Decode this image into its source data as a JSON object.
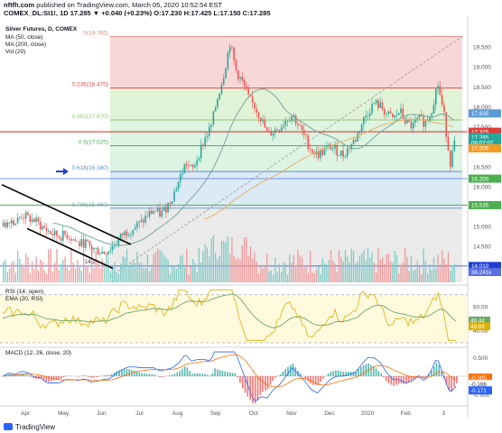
{
  "header": {
    "site": "nftfh.com",
    "published": "published on TradingView.com, March 05, 2020 10:52:54 EST",
    "quote": "COMEX_DL:SI1!, 1D 17.285 ▼ +0.040 (+0.23%) O:17.230 H:17.425 L:17.150 C:17.285"
  },
  "footer": {
    "brand": "TradingView"
  },
  "legend": {
    "title": "Silver Futures, D, COMEX",
    "ma50": "MA (50, close)",
    "ma200": "MA (200, close)",
    "vol": "Vol (20)",
    "rsi": "RSI (14, open)",
    "ema": "EMA (20, RSI)",
    "macd": "MACD (12, 26, close, 20)"
  },
  "colors": {
    "up": "#26a69a",
    "down": "#ef5350",
    "ma50": "#7aa6a0",
    "ma200": "#e8b066",
    "fib_red": "#f5c9c9",
    "fib_green": "#d7efc8",
    "fib_lightgreen": "#d2f0da",
    "fib_blue": "#cfe3f2",
    "fib_grey": "#e3e3e3",
    "rsi": "#e0b000",
    "ema_rsi": "#6aaa64",
    "macd_line": "#2962ff",
    "signal_line": "#ff6d00",
    "arrow": "#1f3fd4"
  },
  "chart_data": [
    {
      "type": "candlestick",
      "panel": "price",
      "series_name": "Silver Futures, D, COMEX",
      "ylim": [
        13.6,
        20.0
      ],
      "yticks": [
        14.0,
        14.5,
        15.0,
        15.5,
        16.0,
        16.5,
        17.0,
        17.5,
        18.0,
        18.5,
        19.0,
        19.5
      ],
      "x_labels": [
        "Apr",
        "May",
        "Jun",
        "Jul",
        "Aug",
        "Sep",
        "Oct",
        "Nov",
        "Dec",
        "2020",
        "Feb",
        "3"
      ],
      "close_path": [
        [
          0,
          15.0
        ],
        [
          5,
          15.2
        ],
        [
          10,
          15.1
        ],
        [
          15,
          15.3
        ],
        [
          20,
          15.2
        ],
        [
          25,
          15.15
        ],
        [
          30,
          15.0
        ],
        [
          35,
          14.9
        ],
        [
          40,
          14.8
        ],
        [
          45,
          14.75
        ],
        [
          50,
          14.8
        ],
        [
          55,
          14.7
        ],
        [
          60,
          14.55
        ],
        [
          65,
          14.6
        ],
        [
          70,
          14.45
        ],
        [
          75,
          14.4
        ],
        [
          80,
          14.35
        ],
        [
          85,
          14.45
        ],
        [
          90,
          14.6
        ],
        [
          95,
          14.8
        ],
        [
          100,
          14.9
        ],
        [
          105,
          15.0
        ],
        [
          110,
          15.1
        ],
        [
          115,
          15.3
        ],
        [
          120,
          15.4
        ],
        [
          125,
          15.3
        ],
        [
          130,
          15.5
        ],
        [
          135,
          15.8
        ],
        [
          140,
          16.2
        ],
        [
          145,
          16.6
        ],
        [
          150,
          16.4
        ],
        [
          155,
          16.8
        ],
        [
          160,
          17.2
        ],
        [
          165,
          17.5
        ],
        [
          170,
          18.2
        ],
        [
          175,
          18.8
        ],
        [
          180,
          19.6
        ],
        [
          185,
          18.9
        ],
        [
          190,
          18.6
        ],
        [
          195,
          18.2
        ],
        [
          200,
          18.0
        ],
        [
          205,
          17.7
        ],
        [
          210,
          17.3
        ],
        [
          215,
          17.4
        ],
        [
          220,
          17.5
        ],
        [
          225,
          17.7
        ],
        [
          230,
          17.8
        ],
        [
          235,
          17.5
        ],
        [
          240,
          17.2
        ],
        [
          245,
          16.9
        ],
        [
          250,
          16.8
        ],
        [
          255,
          16.9
        ],
        [
          260,
          17.0
        ],
        [
          265,
          16.9
        ],
        [
          270,
          16.8
        ],
        [
          275,
          17.0
        ],
        [
          280,
          17.2
        ],
        [
          285,
          17.6
        ],
        [
          290,
          17.9
        ],
        [
          295,
          18.1
        ],
        [
          300,
          18.0
        ],
        [
          305,
          17.8
        ],
        [
          310,
          17.7
        ],
        [
          315,
          17.9
        ],
        [
          320,
          17.6
        ],
        [
          325,
          17.5
        ],
        [
          330,
          17.7
        ],
        [
          335,
          17.6
        ],
        [
          340,
          17.9
        ],
        [
          345,
          18.6
        ],
        [
          350,
          17.8
        ],
        [
          355,
          16.6
        ],
        [
          360,
          17.285
        ]
      ],
      "ma50": "green moving average, 50-day",
      "ma200": "orange moving average, 200-day",
      "price_labels": [
        "17.835",
        "17.375",
        "17.285",
        "06:07:07",
        "17.005",
        "16.200",
        "15.535",
        "14.010",
        "36.241k"
      ],
      "annotations": [
        "14.2"
      ]
    },
    {
      "type": "fibonacci_retracement",
      "levels": [
        {
          "ratio": "0",
          "price": 19.765,
          "label": "0(19.765)"
        },
        {
          "ratio": "0.236",
          "price": 18.47,
          "label": "0.236(18.470)"
        },
        {
          "ratio": "0.382",
          "price": 17.67,
          "label": "0.382(17.670)"
        },
        {
          "ratio": "0.5",
          "price": 17.025,
          "label": "0.5(17.025)"
        },
        {
          "ratio": "0.618",
          "price": 16.38,
          "label": "0.618(16.380)"
        },
        {
          "ratio": "0.786",
          "price": 15.46,
          "label": "0.786(15.460)"
        }
      ]
    },
    {
      "type": "bar",
      "panel": "volume",
      "series_name": "Vol (20)",
      "ylim": [
        0,
        100
      ],
      "note": "daily volume columns colored by candle direction"
    },
    {
      "type": "line",
      "panel": "rsi",
      "series": [
        {
          "name": "RSI (14, open)"
        },
        {
          "name": "EMA (20, RSI)"
        }
      ],
      "ylim": [
        30,
        75
      ],
      "yticks": [
        40.0,
        60.0
      ],
      "price_labels": [
        "48.44",
        "43.69"
      ]
    },
    {
      "type": "line",
      "panel": "macd",
      "series": [
        {
          "name": "MACD"
        },
        {
          "name": "Signal"
        },
        {
          "name": "Histogram"
        }
      ],
      "ylim": [
        -0.7,
        0.7
      ],
      "yticks": [
        0.5,
        0.0,
        -0.5
      ],
      "price_labels": [
        "-0.005",
        "-0.166",
        "-0.171"
      ]
    }
  ]
}
